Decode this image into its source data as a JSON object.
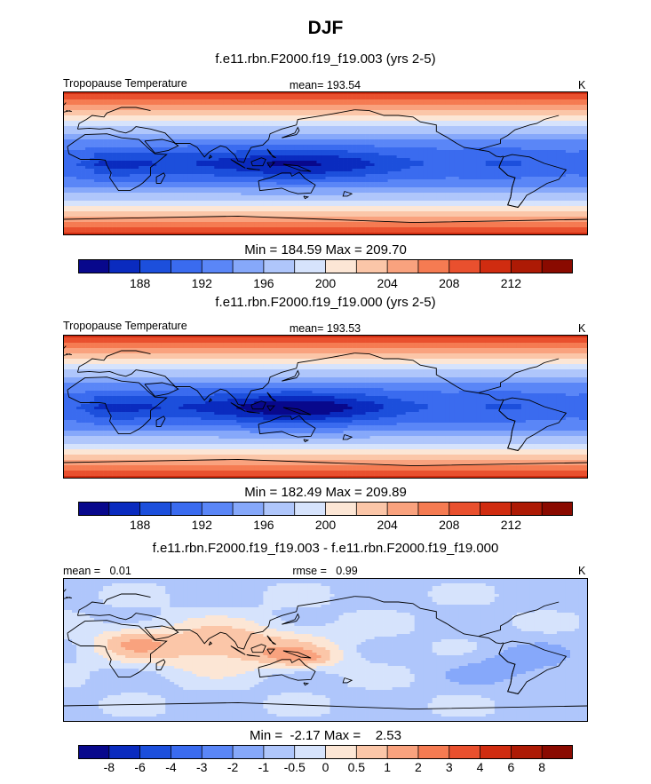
{
  "figure": {
    "title": "DJF",
    "units": "K"
  },
  "chart_data": [
    {
      "type": "heatmap",
      "title": "f.e11.rbn.F2000.f19_f19.003 (yrs 2-5)",
      "variable_label": "Tropopause Temperature",
      "mean_text": "mean= 193.54",
      "units": "K",
      "stats_text": "Min = 184.59 Max = 209.70",
      "min": 184.59,
      "max": 209.7,
      "mean": 193.54,
      "colorbar": {
        "tick_labels": [
          "188",
          "192",
          "196",
          "200",
          "204",
          "208",
          "212"
        ],
        "tick_positions": [
          2,
          4,
          6,
          8,
          10,
          12,
          14
        ],
        "colors": [
          "#08088C",
          "#0A2BBF",
          "#1C4FDC",
          "#3A6BEF",
          "#5A86F7",
          "#86A8FA",
          "#AFC6FB",
          "#D6E3FC",
          "#FCE6D5",
          "#FBC6A8",
          "#F9A27E",
          "#F57B52",
          "#E9502E",
          "#D02C10",
          "#AD1A05",
          "#8A0A00"
        ]
      },
      "contour_levels": [
        184,
        186,
        188,
        190,
        192,
        194,
        196,
        198,
        200,
        202,
        204,
        206,
        208,
        210,
        212,
        214
      ]
    },
    {
      "type": "heatmap",
      "title": "f.e11.rbn.F2000.f19_f19.000 (yrs 2-5)",
      "variable_label": "Tropopause Temperature",
      "mean_text": "mean= 193.53",
      "units": "K",
      "stats_text": "Min = 182.49 Max = 209.89",
      "min": 182.49,
      "max": 209.89,
      "mean": 193.53,
      "colorbar": {
        "tick_labels": [
          "188",
          "192",
          "196",
          "200",
          "204",
          "208",
          "212"
        ],
        "tick_positions": [
          2,
          4,
          6,
          8,
          10,
          12,
          14
        ],
        "colors": [
          "#08088C",
          "#0A2BBF",
          "#1C4FDC",
          "#3A6BEF",
          "#5A86F7",
          "#86A8FA",
          "#AFC6FB",
          "#D6E3FC",
          "#FCE6D5",
          "#FBC6A8",
          "#F9A27E",
          "#F57B52",
          "#E9502E",
          "#D02C10",
          "#AD1A05",
          "#8A0A00"
        ]
      },
      "contour_levels": [
        184,
        186,
        188,
        190,
        192,
        194,
        196,
        198,
        200,
        202,
        204,
        206,
        208,
        210,
        212,
        214
      ]
    },
    {
      "type": "heatmap",
      "title": "f.e11.rbn.F2000.f19_f19.003 - f.e11.rbn.F2000.f19_f19.000",
      "left_label": "mean =   0.01",
      "center_label": "rmse =   0.99",
      "units": "K",
      "stats_text": "Min =  -2.17 Max =    2.53",
      "min": -2.17,
      "max": 2.53,
      "mean": 0.01,
      "rmse": 0.99,
      "colorbar": {
        "tick_labels": [
          "-8",
          "-6",
          "-4",
          "-3",
          "-2",
          "-1",
          "-0.5",
          "0",
          "0.5",
          "1",
          "2",
          "3",
          "4",
          "6",
          "8"
        ],
        "tick_positions": [
          1,
          2,
          3,
          4,
          5,
          6,
          7,
          8,
          9,
          10,
          11,
          12,
          13,
          14,
          15
        ],
        "colors": [
          "#08088C",
          "#0A2BBF",
          "#1C4FDC",
          "#3A6BEF",
          "#5A86F7",
          "#86A8FA",
          "#AFC6FB",
          "#D6E3FC",
          "#FCE6D5",
          "#FBC6A8",
          "#F9A27E",
          "#F57B52",
          "#E9502E",
          "#D02C10",
          "#AD1A05",
          "#8A0A00"
        ]
      },
      "contour_levels": [
        -8,
        -6,
        -4,
        -3,
        -2,
        -1,
        -0.5,
        0,
        0.5,
        1,
        2,
        3,
        4,
        6,
        8
      ]
    }
  ]
}
